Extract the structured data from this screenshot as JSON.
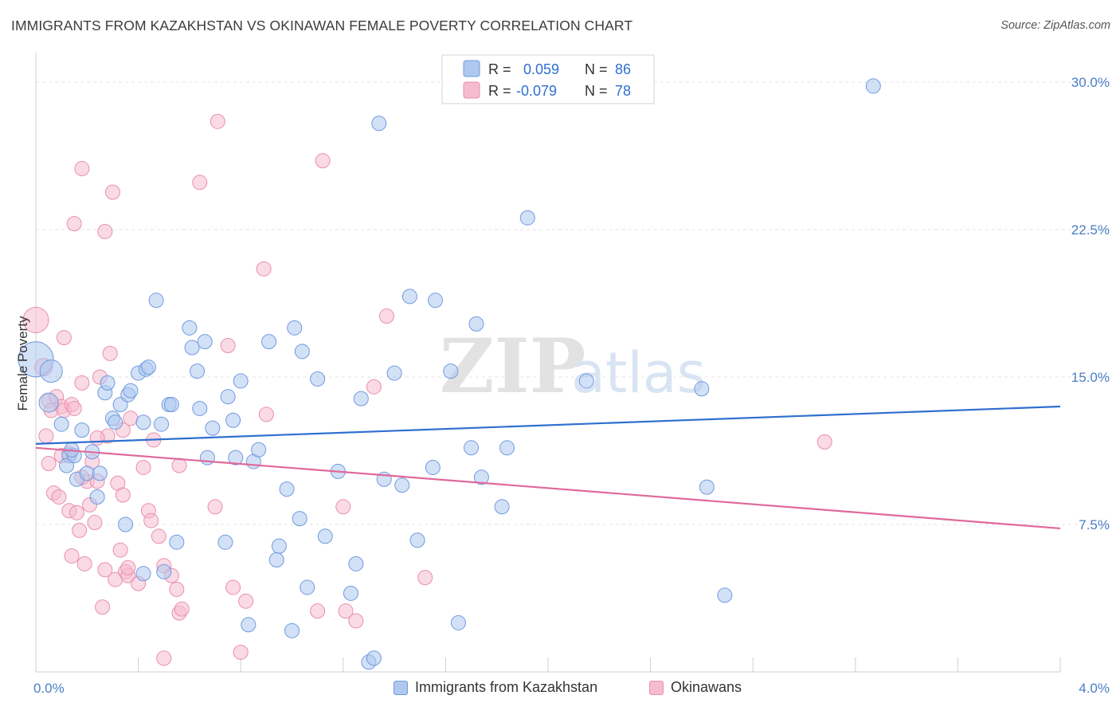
{
  "title": "IMMIGRANTS FROM KAZAKHSTAN VS OKINAWAN FEMALE POVERTY CORRELATION CHART",
  "source": "Source: ZipAtlas.com",
  "watermark": {
    "zip": "ZIP",
    "atlas": "atlas"
  },
  "colors": {
    "blue_fill": "#aec8ef",
    "blue_stroke": "#6f9ae0",
    "blue_line": "#2f6fd0",
    "pink_fill": "#f5bcd0",
    "pink_stroke": "#e98fae",
    "pink_line": "#e0699a",
    "axis_text": "#4a7ec6",
    "grid": "#e3e3e3"
  },
  "legend": {
    "rows": [
      {
        "r_label": "R =",
        "r_value": "0.059",
        "n_label": "N =",
        "n_value": "86"
      },
      {
        "r_label": "R =",
        "r_value": "-0.079",
        "n_label": "N =",
        "n_value": "78"
      }
    ]
  },
  "bottom_legend": {
    "series1": "Immigrants from Kazakhstan",
    "series2": "Okinawans"
  },
  "chart_data": {
    "type": "scatter",
    "title": "IMMIGRANTS FROM KAZAKHSTAN VS OKINAWAN FEMALE POVERTY CORRELATION CHART",
    "xlabel": "",
    "ylabel": "Female Poverty",
    "xlim": [
      0,
      4.0
    ],
    "ylim": [
      0,
      31.5
    ],
    "x_tick_labels": [
      "0.0%",
      "4.0%"
    ],
    "y_ticks": [
      7.5,
      15.0,
      22.5,
      30.0
    ],
    "y_tick_labels": [
      "7.5%",
      "15.0%",
      "22.5%",
      "30.0%"
    ],
    "grid": true,
    "legend_position": "top-center",
    "series": [
      {
        "name": "Immigrants from Kazakhstan",
        "r": 0.059,
        "n": 86,
        "trend": {
          "x": [
            0,
            4.0
          ],
          "y": [
            11.6,
            13.5
          ]
        },
        "points": [
          [
            0.0,
            15.9,
            22
          ],
          [
            0.06,
            15.3,
            14
          ],
          [
            0.05,
            13.7,
            12
          ],
          [
            0.1,
            12.6,
            9
          ],
          [
            0.13,
            11.0,
            9
          ],
          [
            0.12,
            10.5,
            9
          ],
          [
            0.15,
            11.0,
            9
          ],
          [
            0.14,
            11.3,
            9
          ],
          [
            0.16,
            9.8,
            9
          ],
          [
            0.18,
            12.3,
            9
          ],
          [
            0.2,
            10.1,
            9
          ],
          [
            0.22,
            11.2,
            9
          ],
          [
            0.24,
            8.9,
            9
          ],
          [
            0.25,
            10.1,
            9
          ],
          [
            0.27,
            14.2,
            9
          ],
          [
            0.28,
            14.7,
            9
          ],
          [
            0.3,
            12.9,
            9
          ],
          [
            0.31,
            12.7,
            9
          ],
          [
            0.33,
            13.6,
            9
          ],
          [
            0.35,
            7.5,
            9
          ],
          [
            0.36,
            14.1,
            9
          ],
          [
            0.37,
            14.3,
            9
          ],
          [
            0.4,
            15.2,
            9
          ],
          [
            0.42,
            12.7,
            9
          ],
          [
            0.43,
            15.4,
            9
          ],
          [
            0.44,
            15.5,
            9
          ],
          [
            0.47,
            18.9,
            9
          ],
          [
            0.49,
            12.6,
            9
          ],
          [
            0.5,
            5.1,
            9
          ],
          [
            0.52,
            13.6,
            9
          ],
          [
            0.53,
            13.6,
            9
          ],
          [
            0.55,
            6.6,
            9
          ],
          [
            0.6,
            17.5,
            9
          ],
          [
            0.61,
            16.5,
            9
          ],
          [
            0.63,
            15.3,
            9
          ],
          [
            0.64,
            13.4,
            9
          ],
          [
            0.66,
            16.8,
            9
          ],
          [
            0.67,
            10.9,
            9
          ],
          [
            0.69,
            12.4,
            9
          ],
          [
            0.74,
            6.6,
            9
          ],
          [
            0.75,
            14.0,
            9
          ],
          [
            0.77,
            12.8,
            9
          ],
          [
            0.78,
            10.9,
            9
          ],
          [
            0.8,
            14.8,
            9
          ],
          [
            0.83,
            2.4,
            9
          ],
          [
            0.85,
            10.7,
            9
          ],
          [
            0.87,
            11.3,
            9
          ],
          [
            0.91,
            16.8,
            9
          ],
          [
            0.94,
            5.7,
            9
          ],
          [
            0.95,
            6.4,
            9
          ],
          [
            0.98,
            9.3,
            9
          ],
          [
            1.0,
            2.1,
            9
          ],
          [
            1.01,
            17.5,
            9
          ],
          [
            1.03,
            7.8,
            9
          ],
          [
            1.04,
            16.3,
            9
          ],
          [
            1.06,
            4.3,
            9
          ],
          [
            1.1,
            14.9,
            9
          ],
          [
            1.13,
            6.9,
            9
          ],
          [
            1.18,
            10.2,
            9
          ],
          [
            1.23,
            4.0,
            9
          ],
          [
            1.25,
            5.5,
            9
          ],
          [
            1.27,
            13.9,
            9
          ],
          [
            1.3,
            0.5,
            9
          ],
          [
            1.32,
            0.7,
            9
          ],
          [
            1.34,
            27.9,
            9
          ],
          [
            1.36,
            9.8,
            9
          ],
          [
            1.4,
            15.2,
            9
          ],
          [
            1.43,
            9.5,
            9
          ],
          [
            1.46,
            19.1,
            9
          ],
          [
            1.49,
            6.7,
            9
          ],
          [
            1.55,
            10.4,
            9
          ],
          [
            1.56,
            18.9,
            9
          ],
          [
            1.62,
            15.3,
            9
          ],
          [
            1.65,
            2.5,
            9
          ],
          [
            1.7,
            11.4,
            9
          ],
          [
            1.72,
            17.7,
            9
          ],
          [
            1.74,
            9.9,
            9
          ],
          [
            1.82,
            8.4,
            9
          ],
          [
            1.84,
            11.4,
            9
          ],
          [
            1.92,
            23.1,
            9
          ],
          [
            2.15,
            14.8,
            9
          ],
          [
            2.6,
            14.4,
            9
          ],
          [
            2.62,
            9.4,
            9
          ],
          [
            2.69,
            3.9,
            9
          ],
          [
            3.27,
            29.8,
            9
          ],
          [
            0.42,
            5.0,
            9
          ]
        ]
      },
      {
        "name": "Okinawans",
        "r": -0.079,
        "n": 78,
        "trend": {
          "x": [
            0,
            4.0
          ],
          "y": [
            11.4,
            7.3
          ]
        },
        "points": [
          [
            0.0,
            17.9,
            16
          ],
          [
            0.03,
            15.5,
            11
          ],
          [
            0.04,
            12.0,
            9
          ],
          [
            0.05,
            13.8,
            9
          ],
          [
            0.06,
            13.3,
            9
          ],
          [
            0.05,
            10.6,
            9
          ],
          [
            0.08,
            14.0,
            9
          ],
          [
            0.07,
            9.1,
            9
          ],
          [
            0.09,
            8.9,
            9
          ],
          [
            0.1,
            11.0,
            9
          ],
          [
            0.1,
            13.5,
            9
          ],
          [
            0.11,
            13.3,
            9
          ],
          [
            0.11,
            17.0,
            9
          ],
          [
            0.13,
            8.2,
            9
          ],
          [
            0.14,
            5.9,
            9
          ],
          [
            0.14,
            13.6,
            9
          ],
          [
            0.15,
            22.8,
            9
          ],
          [
            0.16,
            8.1,
            9
          ],
          [
            0.17,
            7.2,
            9
          ],
          [
            0.18,
            14.7,
            9
          ],
          [
            0.18,
            25.6,
            9
          ],
          [
            0.19,
            5.5,
            9
          ],
          [
            0.2,
            9.7,
            9
          ],
          [
            0.21,
            8.5,
            9
          ],
          [
            0.22,
            10.7,
            9
          ],
          [
            0.23,
            7.6,
            9
          ],
          [
            0.24,
            9.7,
            9
          ],
          [
            0.25,
            15.0,
            9
          ],
          [
            0.26,
            3.3,
            9
          ],
          [
            0.27,
            5.2,
            9
          ],
          [
            0.27,
            22.4,
            9
          ],
          [
            0.28,
            12.0,
            9
          ],
          [
            0.29,
            16.2,
            9
          ],
          [
            0.3,
            24.4,
            9
          ],
          [
            0.31,
            4.7,
            9
          ],
          [
            0.32,
            9.6,
            9
          ],
          [
            0.33,
            6.2,
            9
          ],
          [
            0.34,
            9.0,
            9
          ],
          [
            0.34,
            12.3,
            9
          ],
          [
            0.35,
            5.1,
            9
          ],
          [
            0.36,
            4.9,
            9
          ],
          [
            0.37,
            12.9,
            9
          ],
          [
            0.4,
            4.5,
            9
          ],
          [
            0.42,
            10.4,
            9
          ],
          [
            0.44,
            8.2,
            9
          ],
          [
            0.45,
            7.7,
            9
          ],
          [
            0.46,
            11.8,
            9
          ],
          [
            0.48,
            6.9,
            9
          ],
          [
            0.5,
            0.7,
            9
          ],
          [
            0.5,
            5.4,
            9
          ],
          [
            0.53,
            4.9,
            9
          ],
          [
            0.55,
            4.2,
            9
          ],
          [
            0.56,
            3.0,
            9
          ],
          [
            0.56,
            10.5,
            9
          ],
          [
            0.57,
            3.2,
            9
          ],
          [
            0.64,
            24.9,
            9
          ],
          [
            0.7,
            8.4,
            9
          ],
          [
            0.71,
            28.0,
            9
          ],
          [
            0.75,
            16.6,
            9
          ],
          [
            0.77,
            4.3,
            9
          ],
          [
            0.8,
            1.0,
            9
          ],
          [
            0.82,
            3.6,
            9
          ],
          [
            0.89,
            20.5,
            9
          ],
          [
            0.9,
            13.1,
            9
          ],
          [
            1.1,
            3.1,
            9
          ],
          [
            1.12,
            26.0,
            9
          ],
          [
            1.2,
            8.4,
            9
          ],
          [
            1.21,
            3.1,
            9
          ],
          [
            1.25,
            2.6,
            9
          ],
          [
            1.32,
            14.5,
            9
          ],
          [
            1.37,
            18.1,
            9
          ],
          [
            1.52,
            4.8,
            9
          ],
          [
            3.08,
            11.7,
            9
          ],
          [
            0.18,
            9.9,
            9
          ],
          [
            0.36,
            5.3,
            9
          ],
          [
            0.13,
            11.1,
            9
          ],
          [
            0.24,
            11.9,
            9
          ],
          [
            0.15,
            13.4,
            9
          ]
        ]
      }
    ]
  }
}
